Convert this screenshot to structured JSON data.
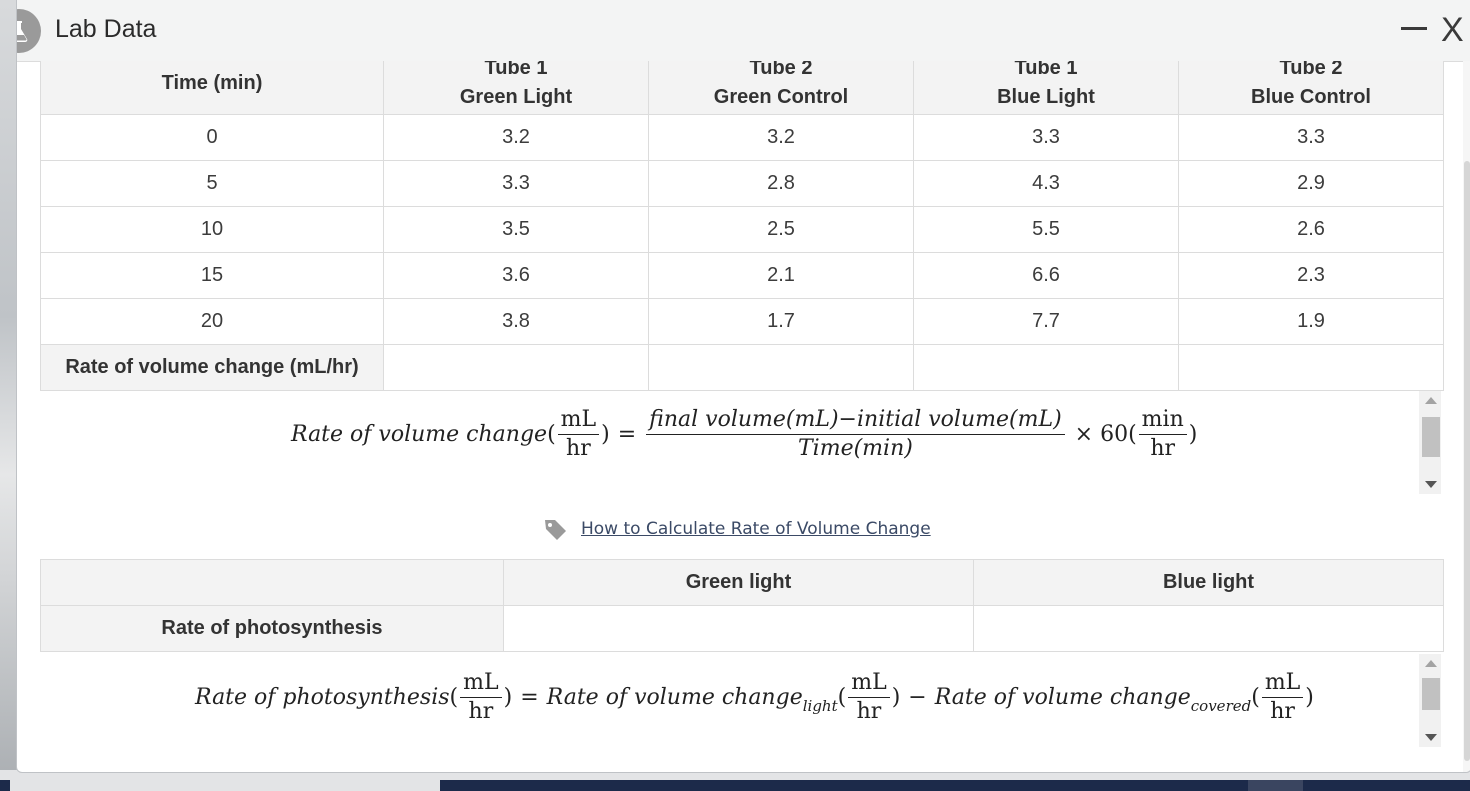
{
  "window": {
    "title": "Lab Data",
    "close_label": "X"
  },
  "data_table": {
    "headers": [
      {
        "line1": "Time (min)",
        "line2": ""
      },
      {
        "line1": "Tube 1",
        "line2": "Green Light"
      },
      {
        "line1": "Tube 2",
        "line2": "Green Control"
      },
      {
        "line1": "Tube 1",
        "line2": "Blue Light"
      },
      {
        "line1": "Tube 2",
        "line2": "Blue Control"
      }
    ],
    "rows": [
      [
        "0",
        "3.2",
        "3.2",
        "3.3",
        "3.3"
      ],
      [
        "5",
        "3.3",
        "2.8",
        "4.3",
        "2.9"
      ],
      [
        "10",
        "3.5",
        "2.5",
        "5.5",
        "2.6"
      ],
      [
        "15",
        "3.6",
        "2.1",
        "6.6",
        "2.3"
      ],
      [
        "20",
        "3.8",
        "1.7",
        "7.7",
        "1.9"
      ]
    ],
    "rate_row_label": "Rate of volume change (mL/hr)",
    "rate_row_values": [
      "",
      "",
      "",
      ""
    ]
  },
  "formula_volume": {
    "lhs": "Rate of volume change",
    "unit_num": "mL",
    "unit_den": "hr",
    "eq": "=",
    "numerator": "final volume(mL)−initial volume(mL)",
    "denominator": "Time(min)",
    "times": "× 60",
    "conv_num": "min",
    "conv_den": "hr"
  },
  "help_link": {
    "label": "How to Calculate Rate of Volume Change",
    "icon": "tag-icon"
  },
  "photosynthesis_table": {
    "headers": [
      "",
      "Green light",
      "Blue light"
    ],
    "row_label": "Rate of photosynthesis",
    "row_values": [
      "",
      ""
    ]
  },
  "formula_photosynthesis": {
    "lhs": "Rate of photosynthesis",
    "unit_num": "mL",
    "unit_den": "hr",
    "eq": "=",
    "term1": "Rate of volume change",
    "term1_sub": "light",
    "minus": "−",
    "term2": "Rate of volume change",
    "term2_sub": "covered"
  }
}
